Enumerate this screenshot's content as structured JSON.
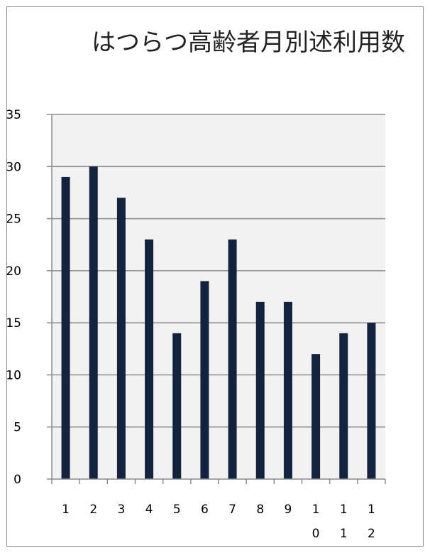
{
  "chart_data": {
    "type": "bar",
    "title": "はつらつ高齢者月別述利用数",
    "categories": [
      "1",
      "2",
      "3",
      "4",
      "5",
      "6",
      "7",
      "8",
      "9",
      "10",
      "11",
      "12"
    ],
    "series": [
      {
        "values": [
          29,
          30,
          27,
          23,
          14,
          19,
          23,
          17,
          17,
          12,
          14,
          15
        ]
      }
    ],
    "ylim": [
      0,
      35
    ],
    "yticks": [
      0,
      5,
      10,
      15,
      20,
      25,
      30,
      35
    ],
    "grid": true,
    "legend": "none",
    "colors": {
      "bar": "#13223f",
      "plot_background": "#f2f2f2",
      "gridline": "#8c8c8c"
    }
  }
}
